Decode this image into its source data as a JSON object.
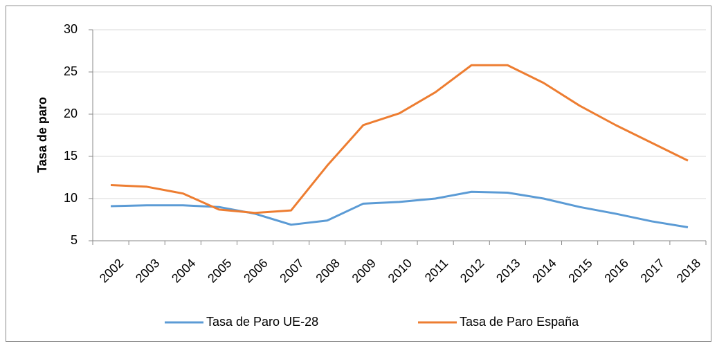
{
  "chart_data": {
    "type": "line",
    "y_label": "Tasa de paro",
    "categories": [
      "2002",
      "2003",
      "2004",
      "2005",
      "2006",
      "2007",
      "2008",
      "2009",
      "2010",
      "2011",
      "2012",
      "2013",
      "2014",
      "2015",
      "2016",
      "2017",
      "2018"
    ],
    "series": [
      {
        "name": "Tasa de Paro UE-28",
        "color": "#5b9bd5",
        "values": [
          9.1,
          9.2,
          9.2,
          9.0,
          8.2,
          6.9,
          7.4,
          9.4,
          9.6,
          10.0,
          10.8,
          10.7,
          10.0,
          9.0,
          8.2,
          7.3,
          6.6
        ]
      },
      {
        "name": "Tasa de Paro España",
        "color": "#ed7d31",
        "values": [
          11.6,
          11.4,
          10.6,
          8.7,
          8.3,
          8.6,
          13.9,
          18.7,
          20.1,
          22.6,
          25.8,
          25.8,
          23.7,
          21.0,
          18.7,
          16.6,
          14.5
        ]
      }
    ],
    "ylim": [
      5,
      30
    ],
    "yticks": [
      5,
      10,
      15,
      20,
      25,
      30
    ],
    "grid": true,
    "legend": "bottom"
  }
}
